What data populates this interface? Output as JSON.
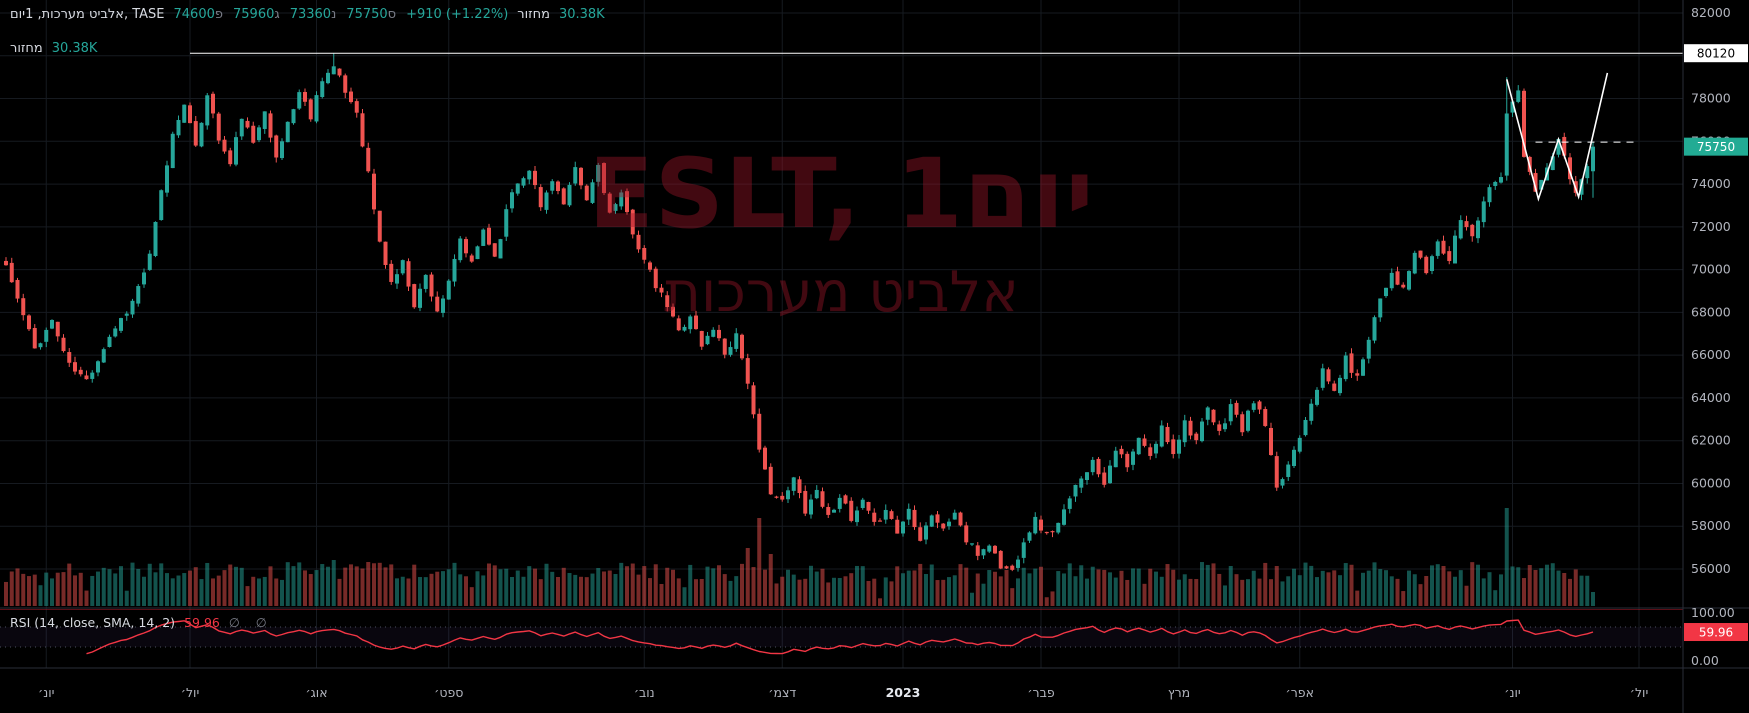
{
  "colors": {
    "bg": "#000000",
    "grid": "#161a20",
    "up": "#26a69a",
    "down": "#ef5350",
    "up_vol": "rgba(38,166,154,0.5)",
    "down_vol": "rgba(239,83,80,0.5)",
    "axis_text": "#b2b5be",
    "legend_text": "#d1d4dc",
    "muted_text": "#787b86",
    "rsi_line": "#f23645",
    "price_badge_bg": "#22ab94",
    "rsi_badge_bg": "#f23645",
    "hline_label_bg": "#ffffff",
    "watermark": "rgba(158,22,41,0.42)",
    "separator": "#2a2e39",
    "pane_accent": "rgba(180,30,45,0.5)",
    "drawing": "#ffffff"
  },
  "header": {
    "title": "אלביט מערכות, 1יום, TASE",
    "ohlc": [
      {
        "key": "פ",
        "value": "74600"
      },
      {
        "key": "ג",
        "value": "75960"
      },
      {
        "key": "נ",
        "value": "73360"
      },
      {
        "key": "ס",
        "value": "75750"
      }
    ],
    "change": "+910 (+1.22%)",
    "volume_label": "מחזור",
    "volume_value": "30.38K"
  },
  "volume_legend": {
    "label": "מחזור",
    "value": "30.38K"
  },
  "rsi_legend": {
    "title": "RSI (14, close, SMA, 14, 2)",
    "value": "59.96",
    "extra": "∅ ∅"
  },
  "watermark": {
    "line1": "ESLT, 1יום",
    "line2": "אלביט מערכות"
  },
  "chart_data": {
    "type": "candlestick",
    "symbol": "ESLT",
    "exchange": "TASE",
    "name": "אלביט מערכות",
    "interval": "1יום",
    "last": {
      "open": 74600,
      "high": 75960,
      "low": 73360,
      "close": 75750
    },
    "change": "+910 (+1.22%)",
    "volume": "30.38K",
    "prev_close": 74840,
    "days": 277,
    "ylim": [
      56000,
      82000
    ],
    "price_ticks": [
      82000,
      80000,
      78000,
      76000,
      74000,
      72000,
      70000,
      68000,
      66000,
      64000,
      62000,
      60000,
      58000,
      56000
    ],
    "rsi_ticks": [
      {
        "label": "100.00",
        "value": 100
      },
      {
        "label": "0.00",
        "value": 0
      }
    ],
    "time_ticks": [
      {
        "label": "יונ׳",
        "day": 7,
        "major": false
      },
      {
        "label": "יול׳",
        "day": 32,
        "major": false
      },
      {
        "label": "אוג׳",
        "day": 54,
        "major": false
      },
      {
        "label": "ספט׳",
        "day": 77,
        "major": false
      },
      {
        "label": "נוב׳",
        "day": 111,
        "major": false
      },
      {
        "label": "דצמ׳",
        "day": 135,
        "major": false
      },
      {
        "label": "2023",
        "day": 156,
        "major": true
      },
      {
        "label": "פבר׳",
        "day": 180,
        "major": false
      },
      {
        "label": "מרץ",
        "day": 204,
        "major": false
      },
      {
        "label": "אפר׳",
        "day": 225,
        "major": false
      },
      {
        "label": "יונ׳",
        "day": 262,
        "major": false
      },
      {
        "label": "יול׳",
        "day": 284,
        "major": false
      }
    ],
    "anchors": [
      [
        0,
        70200
      ],
      [
        2,
        68600
      ],
      [
        5,
        66300
      ],
      [
        8,
        67600
      ],
      [
        11,
        65500
      ],
      [
        14,
        64800
      ],
      [
        18,
        66900
      ],
      [
        22,
        68500
      ],
      [
        25,
        70600
      ],
      [
        27,
        73600
      ],
      [
        29,
        76300
      ],
      [
        31,
        77900
      ],
      [
        33,
        75600
      ],
      [
        35,
        78300
      ],
      [
        37,
        76100
      ],
      [
        39,
        74900
      ],
      [
        41,
        77200
      ],
      [
        43,
        75800
      ],
      [
        45,
        77600
      ],
      [
        47,
        75100
      ],
      [
        49,
        76900
      ],
      [
        51,
        78300
      ],
      [
        53,
        77200
      ],
      [
        55,
        79000
      ],
      [
        57,
        79450
      ],
      [
        59,
        78300
      ],
      [
        61,
        77400
      ],
      [
        63,
        74500
      ],
      [
        65,
        71200
      ],
      [
        67,
        69400
      ],
      [
        69,
        70300
      ],
      [
        71,
        68400
      ],
      [
        73,
        69700
      ],
      [
        75,
        68100
      ],
      [
        77,
        69300
      ],
      [
        79,
        71400
      ],
      [
        81,
        70200
      ],
      [
        83,
        71900
      ],
      [
        85,
        70600
      ],
      [
        88,
        73700
      ],
      [
        91,
        74800
      ],
      [
        93,
        72900
      ],
      [
        95,
        74300
      ],
      [
        97,
        73000
      ],
      [
        99,
        74600
      ],
      [
        101,
        73200
      ],
      [
        103,
        74900
      ],
      [
        105,
        72600
      ],
      [
        107,
        73400
      ],
      [
        109,
        71800
      ],
      [
        111,
        70400
      ],
      [
        113,
        69200
      ],
      [
        115,
        68300
      ],
      [
        117,
        67100
      ],
      [
        119,
        67900
      ],
      [
        121,
        66400
      ],
      [
        123,
        67300
      ],
      [
        125,
        66100
      ],
      [
        127,
        67000
      ],
      [
        129,
        64800
      ],
      [
        131,
        61400
      ],
      [
        133,
        59700
      ],
      [
        135,
        59100
      ],
      [
        137,
        60200
      ],
      [
        139,
        58800
      ],
      [
        141,
        59700
      ],
      [
        143,
        58400
      ],
      [
        145,
        59500
      ],
      [
        147,
        58200
      ],
      [
        149,
        59100
      ],
      [
        151,
        58000
      ],
      [
        153,
        58900
      ],
      [
        155,
        57700
      ],
      [
        157,
        58800
      ],
      [
        159,
        57500
      ],
      [
        161,
        58600
      ],
      [
        163,
        57800
      ],
      [
        165,
        58700
      ],
      [
        167,
        57300
      ],
      [
        169,
        56700
      ],
      [
        171,
        57200
      ],
      [
        173,
        56100
      ],
      [
        175,
        55900
      ],
      [
        177,
        57400
      ],
      [
        179,
        58300
      ],
      [
        181,
        57600
      ],
      [
        183,
        58100
      ],
      [
        185,
        59200
      ],
      [
        187,
        60400
      ],
      [
        189,
        61000
      ],
      [
        191,
        60100
      ],
      [
        193,
        61700
      ],
      [
        195,
        60700
      ],
      [
        197,
        62100
      ],
      [
        199,
        61200
      ],
      [
        201,
        62600
      ],
      [
        203,
        61500
      ],
      [
        205,
        62900
      ],
      [
        207,
        62000
      ],
      [
        209,
        63400
      ],
      [
        211,
        62300
      ],
      [
        213,
        63700
      ],
      [
        215,
        62500
      ],
      [
        217,
        63900
      ],
      [
        219,
        62700
      ],
      [
        221,
        59600
      ],
      [
        223,
        60900
      ],
      [
        225,
        62300
      ],
      [
        227,
        63900
      ],
      [
        229,
        65200
      ],
      [
        231,
        64300
      ],
      [
        233,
        65800
      ],
      [
        235,
        64900
      ],
      [
        237,
        66900
      ],
      [
        239,
        68700
      ],
      [
        241,
        69900
      ],
      [
        243,
        69000
      ],
      [
        245,
        70800
      ],
      [
        247,
        69900
      ],
      [
        249,
        71300
      ],
      [
        251,
        70400
      ],
      [
        253,
        72400
      ],
      [
        255,
        71600
      ],
      [
        257,
        73300
      ],
      [
        259,
        74300
      ],
      [
        260,
        74500
      ],
      [
        261,
        77200
      ],
      [
        262,
        78000
      ],
      [
        263,
        78500
      ],
      [
        264,
        75300
      ],
      [
        266,
        73600
      ],
      [
        268,
        74700
      ],
      [
        270,
        76000
      ],
      [
        272,
        74300
      ],
      [
        273,
        73500
      ],
      [
        274,
        74400
      ],
      [
        275,
        74840
      ],
      [
        276,
        75750
      ]
    ],
    "peak": {
      "day": 57,
      "high": 80120
    },
    "secondary_peak": {
      "day": 261,
      "high": 79000
    },
    "volume_spikes": {
      "57": 46,
      "63": 44,
      "103": 38,
      "129": 58,
      "131": 88,
      "133": 52,
      "174": 36,
      "221": 40,
      "250": 40,
      "261": 98,
      "266": 36
    },
    "drawings": {
      "hline": {
        "price": 80120,
        "from_day": 32
      },
      "dashed": {
        "price": 75960,
        "from_day": 266,
        "to_day": 284
      },
      "zigzag": [
        [
          261,
          78900
        ],
        [
          266.5,
          73300
        ],
        [
          270,
          76100
        ],
        [
          273.5,
          73400
        ],
        [
          278.5,
          79200
        ]
      ]
    },
    "rsi": {
      "period": 14,
      "last": 59.96,
      "bands": [
        70,
        30
      ]
    },
    "labels": {
      "hline": "80120",
      "last_price": "75750",
      "rsi": "59.96"
    }
  }
}
